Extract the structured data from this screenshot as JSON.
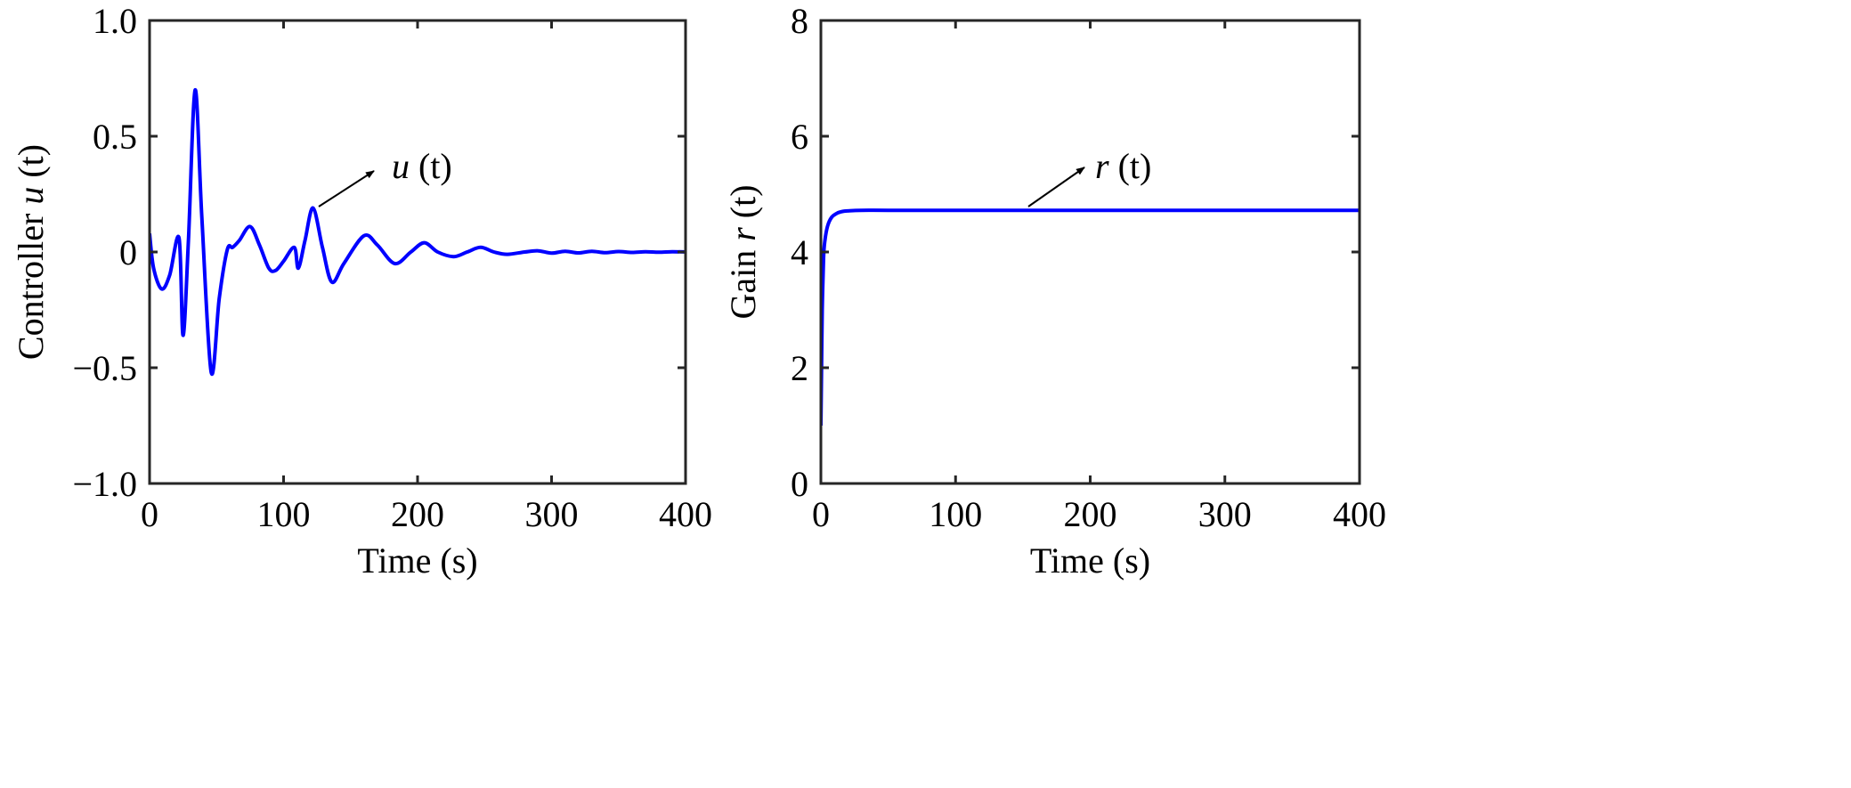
{
  "chart_data": [
    {
      "type": "line",
      "title": "",
      "xlabel": "Time (s)",
      "ylabel_prefix": "Controller ",
      "ylabel_var": "u",
      "ylabel_suffix": " (t)",
      "xlim": [
        0,
        400
      ],
      "ylim": [
        -1,
        1
      ],
      "xticks": [
        0,
        100,
        200,
        300,
        400
      ],
      "xtick_labels": [
        "0",
        "100",
        "200",
        "300",
        "400"
      ],
      "yticks": [
        -1,
        -0.5,
        0,
        0.5,
        1
      ],
      "ytick_labels": [
        "−1.0",
        "−0.5",
        "0",
        "0.5",
        "1.0"
      ],
      "grid": false,
      "annotation": {
        "var": "u",
        "rest": " (t)",
        "points_to": [
          122,
          0.19
        ]
      },
      "series": [
        {
          "name": "u(t)",
          "color": "#0000ff",
          "x": [
            0,
            3,
            9,
            15,
            22,
            25,
            29,
            34,
            39,
            46,
            52,
            58,
            62,
            67,
            75,
            82,
            89,
            94,
            100,
            108,
            111,
            116,
            122,
            129,
            136,
            145,
            160,
            170,
            183,
            195,
            205,
            215,
            227,
            237,
            247,
            257,
            267,
            280,
            290,
            300,
            310,
            320,
            330,
            340,
            350,
            360,
            370,
            380,
            390,
            400
          ],
          "y": [
            0.08,
            -0.07,
            -0.16,
            -0.1,
            0.06,
            -0.36,
            0.05,
            0.7,
            0.15,
            -0.52,
            -0.2,
            0.01,
            0.02,
            0.05,
            0.11,
            0.03,
            -0.07,
            -0.08,
            -0.04,
            0.02,
            -0.07,
            0.05,
            0.19,
            0.02,
            -0.13,
            -0.05,
            0.07,
            0.03,
            -0.05,
            0.0,
            0.04,
            0.0,
            -0.02,
            0.0,
            0.02,
            0.0,
            -0.01,
            0.0,
            0.005,
            -0.005,
            0.003,
            -0.004,
            0.003,
            -0.003,
            0.002,
            -0.002,
            0.001,
            -0.001,
            0.001,
            0.0
          ]
        }
      ]
    },
    {
      "type": "line",
      "title": "",
      "xlabel": "Time (s)",
      "ylabel_prefix": "Gain ",
      "ylabel_var": "r",
      "ylabel_suffix": " (t)",
      "xlim": [
        0,
        400
      ],
      "ylim": [
        0,
        8
      ],
      "xticks": [
        0,
        100,
        200,
        300,
        400
      ],
      "xtick_labels": [
        "0",
        "100",
        "200",
        "300",
        "400"
      ],
      "yticks": [
        0,
        2,
        4,
        6,
        8
      ],
      "ytick_labels": [
        "0",
        "2",
        "4",
        "6",
        "8"
      ],
      "grid": false,
      "annotation": {
        "var": "r",
        "rest": " (t)",
        "points_to": [
          155,
          4.72
        ]
      },
      "series": [
        {
          "name": "r(t)",
          "color": "#0000ff",
          "x": [
            0,
            0.5,
            1,
            2,
            3,
            5,
            8,
            12,
            16,
            20,
            30,
            50,
            100,
            200,
            300,
            400
          ],
          "y": [
            1.0,
            2.0,
            3.0,
            3.9,
            4.2,
            4.45,
            4.6,
            4.67,
            4.7,
            4.71,
            4.72,
            4.72,
            4.72,
            4.72,
            4.72,
            4.72
          ]
        }
      ]
    }
  ]
}
